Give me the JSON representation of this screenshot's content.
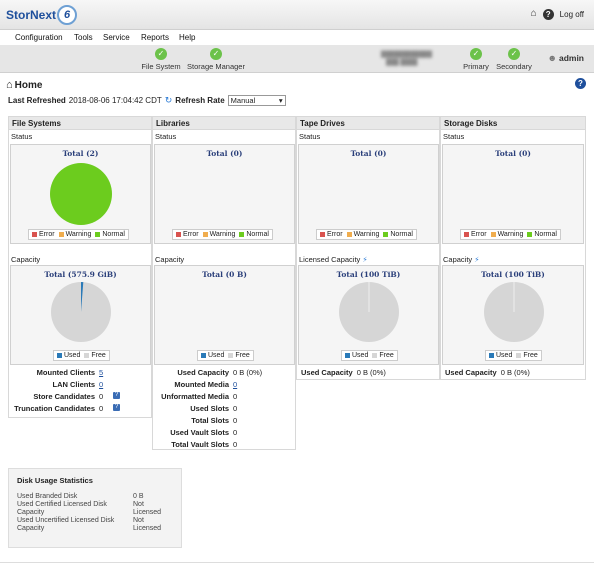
{
  "app": {
    "logo_text": "StorNext",
    "logo_version": "6",
    "logoff": "Log off"
  },
  "menu": [
    "Configuration",
    "Tools",
    "Service",
    "Reports",
    "Help"
  ],
  "status": {
    "file_system": "File System",
    "storage_manager": "Storage Manager",
    "primary": "Primary",
    "secondary": "Secondary",
    "user": "admin"
  },
  "colors": {
    "normal": "#6ccc1e",
    "error": "#d9534f",
    "warning": "#f0ad4e",
    "used": "#2a7ab8",
    "free": "#d6d6d6"
  },
  "home": {
    "title": "Home"
  },
  "refresh": {
    "last_label": "Last Refreshed",
    "last_value": "2018-08-06 17:04:42 CDT",
    "rate_label": "Refresh Rate",
    "rate_value": "Manual"
  },
  "panels": {
    "file_systems": {
      "title": "File Systems",
      "status_label": "Status",
      "status_total": "Total (2)",
      "capacity_label": "Capacity",
      "capacity_total": "Total (575.9 GiB)",
      "rows": [
        {
          "label": "Mounted Clients",
          "value": "5"
        },
        {
          "label": "LAN Clients",
          "value": "0"
        },
        {
          "label": "Store Candidates",
          "value": "0"
        },
        {
          "label": "Truncation Candidates",
          "value": "0"
        }
      ]
    },
    "libraries": {
      "title": "Libraries",
      "status_label": "Status",
      "status_total": "Total (0)",
      "capacity_label": "Capacity",
      "capacity_total": "Total (0 B)",
      "rows": [
        {
          "label": "Used Capacity",
          "value": "0 B (0%)"
        },
        {
          "label": "Mounted Media",
          "value": "0"
        },
        {
          "label": "Unformatted Media",
          "value": "0"
        },
        {
          "label": "Used Slots",
          "value": "0"
        },
        {
          "label": "Total Slots",
          "value": "0"
        },
        {
          "label": "Used Vault Slots",
          "value": "0"
        },
        {
          "label": "Total Vault Slots",
          "value": "0"
        }
      ]
    },
    "tape_drives": {
      "title": "Tape Drives",
      "status_label": "Status",
      "status_total": "Total (0)",
      "capacity_label": "Licensed Capacity",
      "capacity_total": "Total (100 TiB)",
      "rows": [
        {
          "label": "Used Capacity",
          "value": "0 B (0%)"
        }
      ]
    },
    "storage_disks": {
      "title": "Storage Disks",
      "status_label": "Status",
      "status_total": "Total (0)",
      "capacity_label": "Capacity",
      "capacity_total": "Total (100 TiB)",
      "rows": [
        {
          "label": "Used Capacity",
          "value": "0 B (0%)"
        }
      ]
    }
  },
  "legend": {
    "error": "Error",
    "warning": "Warning",
    "normal": "Normal",
    "used": "Used",
    "free": "Free"
  },
  "disk_usage": {
    "title": "Disk Usage Statistics",
    "rows": [
      {
        "label": "Used Branded Disk",
        "value": "0 B"
      },
      {
        "label": "Used Certified Licensed Disk Capacity",
        "value": "Not Licensed"
      },
      {
        "label": "Used Uncertified Licensed Disk Capacity",
        "value": "Not Licensed"
      }
    ]
  },
  "chart_data": [
    {
      "type": "pie",
      "title": "Total (2)",
      "categories": [
        "Error",
        "Warning",
        "Normal"
      ],
      "values": [
        0,
        0,
        2
      ]
    },
    {
      "type": "pie",
      "title": "Total (575.9 GiB)",
      "categories": [
        "Used",
        "Free"
      ],
      "values": [
        0.012,
        0.988
      ]
    },
    {
      "type": "pie",
      "title": "Total (0)",
      "categories": [
        "Error",
        "Warning",
        "Normal"
      ],
      "values": [
        0,
        0,
        0
      ]
    },
    {
      "type": "pie",
      "title": "Total (0 B)",
      "categories": [
        "Used",
        "Free"
      ],
      "values": [
        0,
        0
      ]
    },
    {
      "type": "pie",
      "title": "Total (0)",
      "categories": [
        "Error",
        "Warning",
        "Normal"
      ],
      "values": [
        0,
        0,
        0
      ]
    },
    {
      "type": "pie",
      "title": "Total (100 TiB)",
      "categories": [
        "Used",
        "Free"
      ],
      "values": [
        0,
        1
      ]
    },
    {
      "type": "pie",
      "title": "Total (0)",
      "categories": [
        "Error",
        "Warning",
        "Normal"
      ],
      "values": [
        0,
        0,
        0
      ]
    },
    {
      "type": "pie",
      "title": "Total (100 TiB)",
      "categories": [
        "Used",
        "Free"
      ],
      "values": [
        0,
        1
      ]
    }
  ]
}
